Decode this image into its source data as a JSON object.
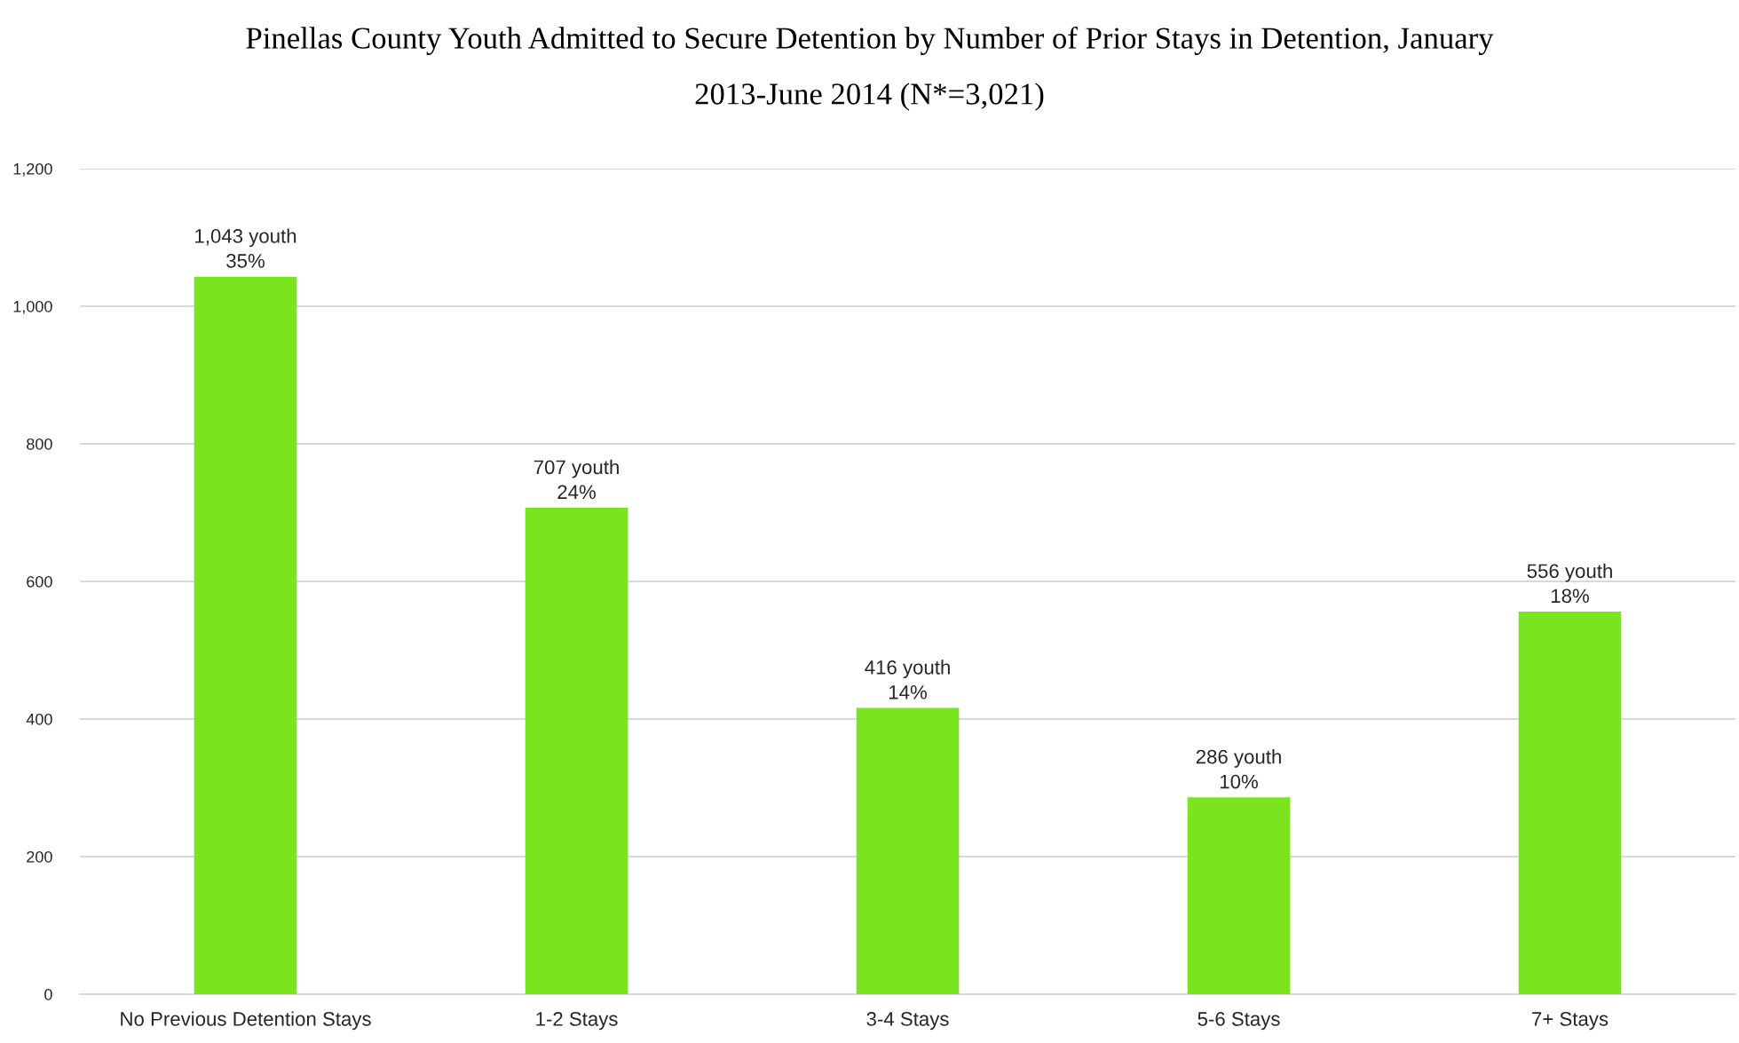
{
  "chart_data": {
    "type": "bar",
    "title": "Pinellas County Youth Admitted to Secure Detention by Number of Prior Stays in Detention, January 2013-June 2014 (N*=3,021)",
    "categories": [
      "No Previous Detention Stays",
      "1-2 Stays",
      "3-4 Stays",
      "5-6 Stays",
      "7+ Stays"
    ],
    "values": [
      1043,
      707,
      416,
      286,
      556
    ],
    "value_labels": [
      "1,043 youth\n35%",
      "707 youth\n24%",
      "416 youth\n14%",
      "286 youth\n10%",
      "556 youth\n18%"
    ],
    "color": "#7ae41e",
    "ylim": [
      0,
      1200
    ],
    "yticks": [
      0,
      200,
      400,
      600,
      800,
      {
        "value": 1000,
        "label": "1,000"
      },
      {
        "value": 1200,
        "label": "1,200"
      }
    ],
    "grid": "y"
  }
}
